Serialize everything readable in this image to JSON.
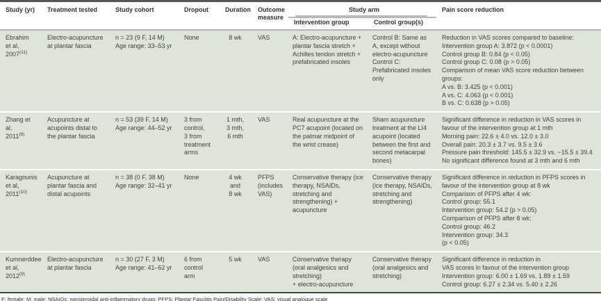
{
  "colors": {
    "row_background": "#dfe4d8",
    "top_bar": "#57585a",
    "header_rule": "#b7b9b6",
    "bottom_rule": "#3e4843",
    "body_text": "#3f4140"
  },
  "table": {
    "headers": {
      "study": "Study (yr)",
      "treatment": "Treatment tested",
      "cohort": "Study cohort",
      "dropout": "Dropout",
      "duration": "Duration",
      "outcome": "Outcome measure",
      "study_arm": "Study arm",
      "intervention": "Intervention group",
      "control": "Control group(s)",
      "pain": "Pain score reduction"
    },
    "rows": [
      {
        "study": "Ebrahim\net al,\n2007",
        "ref": "(11)",
        "treatment": "Electro-acupuncture at plantar fascia",
        "cohort": "n = 23 (9 F, 14 M)\nAge range: 33–53 yr",
        "dropout": "None",
        "duration": "8 wk",
        "outcome": "VAS",
        "intervention": "A: Electro-acupuncture + plantar fascia stretch + Achilles tendon stretch + prefabricated insoles",
        "control": "Control B: Same as A, except without electro-acupuncture\nControl C: Prefabricated insoles only",
        "pain": "Reduction in VAS scores compared to baseline:\nIntervention group A: 3.872 (p < 0.0001)\nControl group B: 0.84 (p < 0.05)\nControl group C: 0.08 (p > 0.05)\nComparison of mean VAS score reduction between groups:\nA vs. B: 3.425 (p < 0.001)\nA vs. C: 4.063 (p < 0.001)\nB vs. C: 0.638 (p > 0.05)"
      },
      {
        "study": "Zhang et al,\n2011",
        "ref": "(8)",
        "treatment": "Acupuncture at acupoints distal to the plantar fascia",
        "cohort": "n = 53 (39 F, 14 M)\nAge range: 44–52 yr",
        "dropout": "3 from\ncontrol,\n3 from\ntreatment\narms",
        "duration": "1 mth,\n3 mth,\n6 mth",
        "outcome": "VAS",
        "intervention": "Real acupuncture at the PC7 acupoint (located on the palmar midpoint of the wrist crease)",
        "control": "Sham acupuncture treatment at the LI4 acupoint (located between the first and second metacarpal bones)",
        "pain": "Significant difference in reduction in VAS scores in favour of the intervention group at 1 mth\nMorning pain: 22.6 ± 4.0 vs. 12.0 ± 3.0\nOverall pain: 20.3 ± 3.7 vs. 9.5 ± 3.6\nPressure pain threshold: 145.5 ± 32.9 vs. −15.5 ± 39.4\nNo significant difference found at 3 mth and 6 mth"
      },
      {
        "study": "Karagounis\net al,\n2011",
        "ref": "(10)",
        "treatment": "Acupuncture at plantar fascia and distal acupoints",
        "cohort": "n = 38 (0 F, 38 M)\nAge range: 32–41 yr",
        "dropout": "None",
        "duration": "4 wk\nand\n8 wk",
        "outcome": "PFPS\n(includes\nVAS)",
        "intervention": "Conservative therapy (ice therapy, NSAIDs, stretching and strengthening) + acupuncture",
        "control": "Conservative therapy (ice therapy, NSAIDs, stretching and strengthening)",
        "pain": "Significant difference in reduction in PFPS scores in favour of the intervention group at 8 wk\nComparison of PFPS after 4 wk:\nControl group: 55.1\nIntervention group: 54.2 (p > 0.05)\nComparison of PFPS after 8 wk:\nControl group: 46.2\nIntervention group: 34.3\n(p < 0.05)"
      },
      {
        "study": "Kumnerddee\net al, 2012",
        "ref": "(9)",
        "treatment": "Electro-acupuncture at plantar fascia",
        "cohort": "n = 30 (27 F, 3 M)\nAge range: 41–62 yr",
        "dropout": "6 from\ncontrol\narm",
        "duration": "5 wk",
        "outcome": "VAS",
        "intervention": "Conservative therapy (oral analgesics and stretching)\n+ electro-acupuncture",
        "control": "Conservative therapy (oral analgesics and stretching)",
        "pain": "Significant difference in reduction in\nVAS scores in favour of the intervention group\nIntervention group: 6.00 ± 1.69 vs. 1.89 ± 1.59\nControl group: 6.27 ± 2.34 vs. 5.40 ± 2.26"
      }
    ]
  },
  "footnote": "F: female; M: male; NSAIDs: nonsteroidal anti-inflammatory drugs; PFPS: Plantar Fasciitis Pain/Disability Scale; VAS: visual analogue scale"
}
